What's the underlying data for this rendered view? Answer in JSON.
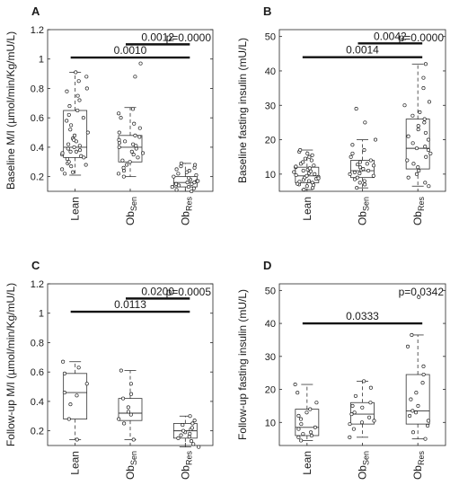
{
  "chart_data": [
    {
      "type": "boxplot",
      "panel": "A",
      "p_value": "p=0.0000",
      "ylabel": "Baseline M/I (µmol/min/Kg/mU/L)",
      "ylim": [
        0.1,
        1.2
      ],
      "yticks": [
        0.2,
        0.4,
        0.6,
        0.8,
        1,
        1.2
      ],
      "categories": [
        {
          "main": "Lean",
          "sub": ""
        },
        {
          "main": "Ob",
          "sub": "Sen"
        },
        {
          "main": "Ob",
          "sub": "Res"
        }
      ],
      "boxes": [
        {
          "q1": 0.33,
          "median": 0.4,
          "q3": 0.65,
          "whisker_low": 0.21,
          "whisker_high": 0.91,
          "points": [
            0.23,
            0.25,
            0.27,
            0.29,
            0.3,
            0.32,
            0.34,
            0.35,
            0.36,
            0.37,
            0.38,
            0.39,
            0.4,
            0.41,
            0.42,
            0.44,
            0.46,
            0.48,
            0.5,
            0.52,
            0.55,
            0.58,
            0.6,
            0.62,
            0.65,
            0.68,
            0.72,
            0.75,
            0.78,
            0.8,
            0.85,
            0.88,
            0.91,
            0.22,
            0.28,
            0.33,
            0.45,
            0.37
          ]
        },
        {
          "q1": 0.3,
          "median": 0.4,
          "q3": 0.48,
          "whisker_low": 0.2,
          "whisker_high": 0.67,
          "points": [
            0.2,
            0.22,
            0.24,
            0.26,
            0.28,
            0.3,
            0.31,
            0.33,
            0.35,
            0.37,
            0.39,
            0.4,
            0.41,
            0.42,
            0.44,
            0.45,
            0.47,
            0.48,
            0.5,
            0.53,
            0.56,
            0.6,
            0.63,
            0.66,
            0.88,
            0.97,
            0.36,
            0.43
          ]
        },
        {
          "q1": 0.13,
          "median": 0.16,
          "q3": 0.2,
          "whisker_low": 0.1,
          "whisker_high": 0.29,
          "points": [
            0.1,
            0.11,
            0.12,
            0.13,
            0.13,
            0.14,
            0.15,
            0.15,
            0.16,
            0.16,
            0.17,
            0.17,
            0.18,
            0.19,
            0.2,
            0.21,
            0.22,
            0.23,
            0.24,
            0.25,
            0.26,
            0.27,
            0.28,
            0.29
          ]
        }
      ],
      "comparisons": [
        {
          "from": 0,
          "to": 2,
          "label": "0.0010",
          "y": 1.01
        },
        {
          "from": 1,
          "to": 2,
          "label": "0.0012",
          "y": 1.1
        }
      ]
    },
    {
      "type": "boxplot",
      "panel": "B",
      "p_value": "p=0.0000",
      "ylabel": "Baseline fasting insulin (mU/L)",
      "ylim": [
        5,
        52
      ],
      "yticks": [
        10,
        20,
        30,
        40,
        50
      ],
      "categories": [
        {
          "main": "Lean",
          "sub": ""
        },
        {
          "main": "Ob",
          "sub": "Sen"
        },
        {
          "main": "Ob",
          "sub": "Res"
        }
      ],
      "boxes": [
        {
          "q1": 7.5,
          "median": 9.5,
          "q3": 12.0,
          "whisker_low": 5.5,
          "whisker_high": 17.0,
          "points": [
            5.5,
            6.0,
            6.5,
            7.0,
            7.2,
            7.5,
            7.8,
            8.0,
            8.3,
            8.6,
            9.0,
            9.2,
            9.5,
            9.7,
            10.0,
            10.3,
            10.6,
            11.0,
            11.3,
            11.7,
            12.0,
            12.5,
            13.0,
            13.5,
            14.0,
            14.5,
            15.0,
            15.5,
            16.0,
            16.5,
            17.0,
            8.8,
            10.8,
            6.8,
            12.2
          ]
        },
        {
          "q1": 9.0,
          "median": 11.0,
          "q3": 14.0,
          "whisker_low": 6.0,
          "whisker_high": 20.0,
          "points": [
            6.0,
            7.0,
            7.5,
            8.0,
            8.5,
            9.0,
            9.5,
            10.0,
            10.5,
            11.0,
            11.2,
            11.5,
            12.0,
            12.5,
            13.0,
            13.5,
            14.0,
            15.0,
            16.0,
            17.0,
            18.5,
            20.0,
            25.0,
            29.0,
            10.2,
            12.8
          ]
        },
        {
          "q1": 11.5,
          "median": 17.5,
          "q3": 26.0,
          "whisker_low": 6.5,
          "whisker_high": 42.0,
          "points": [
            6.5,
            7.5,
            9.0,
            10.0,
            11.0,
            12.0,
            13.0,
            14.0,
            15.0,
            16.0,
            17.0,
            17.5,
            18.0,
            19.0,
            20.0,
            21.0,
            22.0,
            23.0,
            24.0,
            25.0,
            26.0,
            27.0,
            28.0,
            30.0,
            31.0,
            35.0,
            38.0,
            42.0
          ]
        }
      ],
      "comparisons": [
        {
          "from": 0,
          "to": 2,
          "label": "0.0014",
          "y": 44
        },
        {
          "from": 1,
          "to": 2,
          "label": "0.0042",
          "y": 48
        }
      ]
    },
    {
      "type": "boxplot",
      "panel": "C",
      "p_value": "p=0.0005",
      "ylabel": "Follow-up M/I (µmol/min/Kg/mU/L)",
      "ylim": [
        0.1,
        1.2
      ],
      "yticks": [
        0.2,
        0.4,
        0.6,
        0.8,
        1,
        1.2
      ],
      "categories": [
        {
          "main": "Lean",
          "sub": ""
        },
        {
          "main": "Ob",
          "sub": "Sen"
        },
        {
          "main": "Ob",
          "sub": "Res"
        }
      ],
      "boxes": [
        {
          "q1": 0.28,
          "median": 0.46,
          "q3": 0.59,
          "whisker_low": 0.14,
          "whisker_high": 0.67,
          "points": [
            0.14,
            0.28,
            0.38,
            0.44,
            0.46,
            0.52,
            0.59,
            0.63,
            0.67
          ]
        },
        {
          "q1": 0.27,
          "median": 0.32,
          "q3": 0.42,
          "whisker_low": 0.14,
          "whisker_high": 0.61,
          "points": [
            0.14,
            0.25,
            0.28,
            0.31,
            0.33,
            0.36,
            0.42,
            0.45,
            0.52,
            0.61
          ]
        },
        {
          "q1": 0.15,
          "median": 0.2,
          "q3": 0.25,
          "whisker_low": 0.09,
          "whisker_high": 0.3,
          "points": [
            0.09,
            0.11,
            0.13,
            0.15,
            0.16,
            0.17,
            0.18,
            0.19,
            0.2,
            0.21,
            0.22,
            0.24,
            0.25,
            0.27,
            0.3
          ]
        }
      ],
      "comparisons": [
        {
          "from": 0,
          "to": 2,
          "label": "0.0113",
          "y": 1.01
        },
        {
          "from": 1,
          "to": 2,
          "label": "0.0200",
          "y": 1.1
        }
      ]
    },
    {
      "type": "boxplot",
      "panel": "D",
      "p_value": "p=0.0342",
      "ylabel": "Follow-up fasting insulin (mU/L)",
      "ylim": [
        3,
        52
      ],
      "yticks": [
        10,
        20,
        30,
        40,
        50
      ],
      "categories": [
        {
          "main": "Lean",
          "sub": ""
        },
        {
          "main": "Ob",
          "sub": "Sen"
        },
        {
          "main": "Ob",
          "sub": "Res"
        }
      ],
      "boxes": [
        {
          "q1": 6.0,
          "median": 8.5,
          "q3": 14.0,
          "whisker_low": 4.5,
          "whisker_high": 21.5,
          "points": [
            4.5,
            5.5,
            6.0,
            7.0,
            8.0,
            8.5,
            9.5,
            11.0,
            13.0,
            14.0,
            16.0,
            19.0,
            21.5,
            6.5,
            12.0
          ]
        },
        {
          "q1": 9.5,
          "median": 12.5,
          "q3": 16.0,
          "whisker_low": 5.5,
          "whisker_high": 22.5,
          "points": [
            5.5,
            8.0,
            9.5,
            10.5,
            11.5,
            12.5,
            13.0,
            14.5,
            16.0,
            18.0,
            20.5,
            22.5,
            10.0,
            15.0
          ]
        },
        {
          "q1": 9.5,
          "median": 13.5,
          "q3": 24.5,
          "whisker_low": 5.0,
          "whisker_high": 36.5,
          "points": [
            5.0,
            7.0,
            9.0,
            10.5,
            12.0,
            13.0,
            13.5,
            15.0,
            17.0,
            19.0,
            22.0,
            24.5,
            27.0,
            33.0,
            36.5,
            48.0
          ]
        }
      ],
      "comparisons": [
        {
          "from": 0,
          "to": 2,
          "label": "0.0333",
          "y": 40
        }
      ]
    }
  ]
}
